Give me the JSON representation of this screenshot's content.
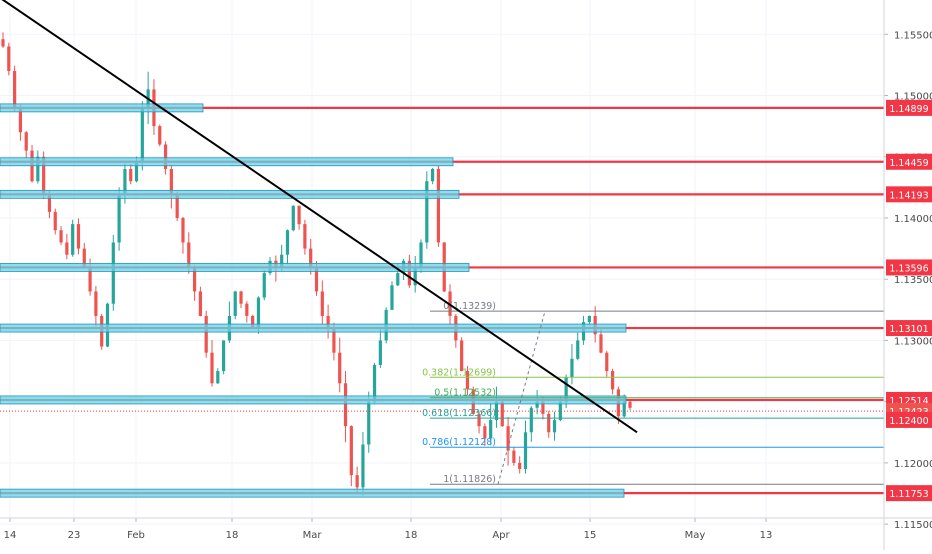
{
  "chart_data": {
    "type": "candlestick",
    "title": "",
    "xlabel": "",
    "ylabel": "",
    "ylim": [
      1.1155,
      1.1578
    ],
    "grid": true,
    "x_ticks": [
      "14",
      "23",
      "Feb",
      "18",
      "Mar",
      "18",
      "Apr",
      "15",
      "May",
      "13"
    ],
    "y_ticks": [
      "1.15500",
      "1.15000",
      "1.14500",
      "1.14000",
      "1.13500",
      "1.13000",
      "1.12500",
      "1.12000",
      "1.11500"
    ],
    "price_levels": [
      {
        "value": "1.14899",
        "level": 1.14899
      },
      {
        "value": "1.14459",
        "level": 1.14459
      },
      {
        "value": "1.14193",
        "level": 1.14193
      },
      {
        "value": "1.13596",
        "level": 1.13596
      },
      {
        "value": "1.13101",
        "level": 1.13101
      },
      {
        "value": "1.12514",
        "level": 1.12514
      },
      {
        "value": "1.11753",
        "level": 1.11753
      }
    ],
    "current_price": {
      "value": "1.12423",
      "level": 1.12423
    },
    "other_price_tag": {
      "value": "1.12400",
      "level": 1.124
    },
    "fibonacci": [
      {
        "label": "0(1.13239)",
        "level": 1.13239,
        "color": "#787b86"
      },
      {
        "label": "0.382(1.12699)",
        "level": 1.12699,
        "color": "#8bc34a"
      },
      {
        "label": "0.5(1.12532)",
        "level": 1.12532,
        "color": "#4caf50"
      },
      {
        "label": "0.618(1.12366)",
        "level": 1.12366,
        "color": "#26a69a"
      },
      {
        "label": "0.786(1.12128)",
        "level": 1.12128,
        "color": "#2196f3"
      },
      {
        "label": "1(1.11826)",
        "level": 1.11826,
        "color": "#787b86"
      }
    ],
    "trendline": {
      "from": 1.15798,
      "to": 1.1225
    },
    "price_path": [
      1.154,
      1.152,
      1.149,
      1.147,
      1.1455,
      1.143,
      1.145,
      1.142,
      1.1405,
      1.139,
      1.138,
      1.137,
      1.1395,
      1.1375,
      1.136,
      1.134,
      1.132,
      1.1295,
      1.133,
      1.138,
      1.142,
      1.144,
      1.143,
      1.1445,
      1.149,
      1.1505,
      1.1475,
      1.146,
      1.144,
      1.142,
      1.14,
      1.138,
      1.136,
      1.134,
      1.132,
      1.129,
      1.1265,
      1.1275,
      1.13,
      1.132,
      1.134,
      1.133,
      1.132,
      1.131,
      1.1335,
      1.1355,
      1.1365,
      1.136,
      1.137,
      1.139,
      1.141,
      1.1395,
      1.1375,
      1.136,
      1.134,
      1.132,
      1.131,
      1.129,
      1.1265,
      1.123,
      1.119,
      1.118,
      1.1215,
      1.125,
      1.128,
      1.13,
      1.1325,
      1.1345,
      1.1355,
      1.1365,
      1.1345,
      1.136,
      1.138,
      1.143,
      1.144,
      1.138,
      1.134,
      1.132,
      1.13,
      1.1275,
      1.126,
      1.124,
      1.123,
      1.122,
      1.1235,
      1.125,
      1.123,
      1.121,
      1.12,
      1.1195,
      1.1225,
      1.1245,
      1.125,
      1.124,
      1.1225,
      1.1235,
      1.125,
      1.127,
      1.1285,
      1.13,
      1.1315,
      1.132,
      1.1305,
      1.129,
      1.1275,
      1.126,
      1.1238,
      1.125,
      1.1245
    ]
  },
  "axis": {
    "current_price_text": "1.12423"
  }
}
